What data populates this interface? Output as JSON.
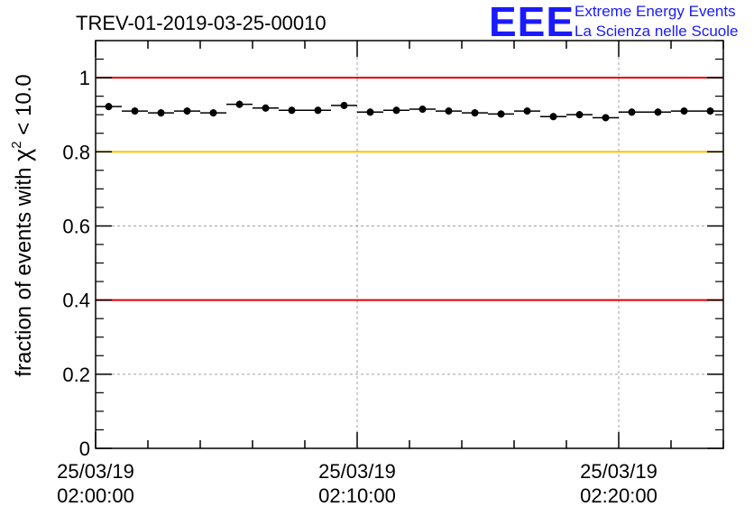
{
  "logo": {
    "mark": "EEE",
    "line1": "Extreme Energy Events",
    "line2": "La Scienza nelle Scuole",
    "color": "#1a1aff"
  },
  "chart_data": {
    "type": "scatter",
    "title": "TREV-01-2019-03-25-00010",
    "ylabel_prefix": "fraction of events with ",
    "ylabel_symbol": "χ",
    "ylabel_exponent": "2",
    "ylabel_suffix": " < 10.0",
    "ylim": [
      0,
      1.1
    ],
    "xlim_minutes": [
      0,
      24
    ],
    "yticks": [
      0,
      0.2,
      0.4,
      0.6,
      0.8,
      1
    ],
    "ytick_labels": [
      "0",
      "0.2",
      "0.4",
      "0.6",
      "0.8",
      "1"
    ],
    "xticks_minutes": [
      0,
      10,
      20
    ],
    "xtick_labels": [
      {
        "date": "25/03/19",
        "time": "02:00:00"
      },
      {
        "date": "25/03/19",
        "time": "02:10:00"
      },
      {
        "date": "25/03/19",
        "time": "02:20:00"
      }
    ],
    "grid": true,
    "reference_lines": [
      {
        "y": 1.0,
        "color": "#e00000"
      },
      {
        "y": 0.8,
        "color": "#ffc000"
      },
      {
        "y": 0.4,
        "color": "#e00000"
      }
    ],
    "series": [
      {
        "x_minutes": [
          0.5,
          1.5,
          2.5,
          3.5,
          4.5,
          5.5,
          6.5,
          7.5,
          8.5,
          9.5,
          10.5,
          11.5,
          12.5,
          13.5,
          14.5,
          15.5,
          16.5,
          17.5,
          18.5,
          19.5,
          20.5,
          21.5,
          22.5,
          23.5
        ],
        "values": [
          0.922,
          0.91,
          0.905,
          0.91,
          0.905,
          0.928,
          0.918,
          0.912,
          0.912,
          0.925,
          0.907,
          0.912,
          0.915,
          0.91,
          0.905,
          0.902,
          0.91,
          0.895,
          0.9,
          0.892,
          0.907,
          0.907,
          0.91,
          0.91
        ],
        "bin_width_minutes": 1,
        "color": "#000000"
      }
    ]
  }
}
